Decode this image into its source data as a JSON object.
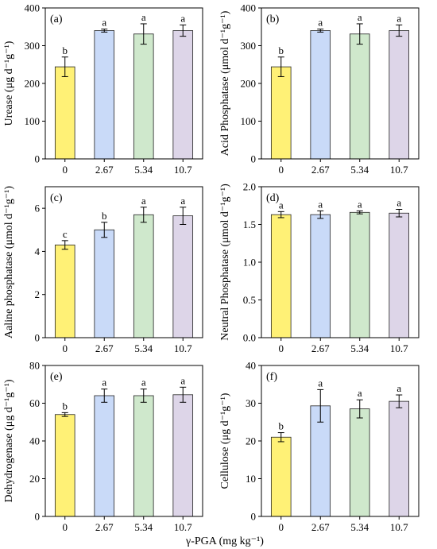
{
  "figure": {
    "xlabel": "γ-PGA (mg kg⁻¹)"
  },
  "colors": [
    "#fff176",
    "#c9daf8",
    "#cfe8cc",
    "#ddd5e8"
  ],
  "chart_data": [
    {
      "type": "bar",
      "panel_label": "(a)",
      "ylabel": "Urease (μg d⁻¹g⁻¹)",
      "categories": [
        "0",
        "2.67",
        "5.34",
        "10.7"
      ],
      "values": [
        244,
        340,
        331,
        340
      ],
      "errors": [
        26,
        4,
        27,
        15
      ],
      "letters": [
        "b",
        "a",
        "a",
        "a"
      ],
      "ylim": [
        0,
        400
      ],
      "yticks": [
        "0",
        "100",
        "200",
        "300",
        "400"
      ]
    },
    {
      "type": "bar",
      "panel_label": "(b)",
      "ylabel": "Acid Phosphatase (μmol d⁻¹g⁻¹)",
      "categories": [
        "0",
        "2.67",
        "5.34",
        "10.7"
      ],
      "values": [
        244,
        340,
        331,
        340
      ],
      "errors": [
        26,
        4,
        27,
        15
      ],
      "letters": [
        "b",
        "a",
        "a",
        "a"
      ],
      "ylim": [
        0,
        400
      ],
      "yticks": [
        "0",
        "100",
        "200",
        "300",
        "400"
      ]
    },
    {
      "type": "bar",
      "panel_label": "(c)",
      "ylabel": "Aaline phosphatase (μmol d⁻¹g⁻¹)",
      "categories": [
        "0",
        "2.67",
        "5.34",
        "10.7"
      ],
      "values": [
        4.3,
        5.0,
        5.7,
        5.65
      ],
      "errors": [
        0.2,
        0.35,
        0.35,
        0.4
      ],
      "letters": [
        "c",
        "b",
        "a",
        "a"
      ],
      "ylim": [
        0,
        7
      ],
      "yticks": [
        "0",
        "2",
        "4",
        "6"
      ]
    },
    {
      "type": "bar",
      "panel_label": "(d)",
      "ylabel": "Neutral Phosphatase (μmol d⁻¹g⁻¹)",
      "categories": [
        "0",
        "2.67",
        "5.34",
        "10.7"
      ],
      "values": [
        1.63,
        1.63,
        1.66,
        1.65
      ],
      "errors": [
        0.04,
        0.05,
        0.02,
        0.05
      ],
      "letters": [
        "a",
        "a",
        "a",
        "a"
      ],
      "ylim": [
        0,
        2.0
      ],
      "yticks": [
        "0.0",
        "0.5",
        "1.0",
        "1.5",
        "2.0"
      ]
    },
    {
      "type": "bar",
      "panel_label": "(e)",
      "ylabel": "Dehydrogenase (μg d⁻¹g⁻¹)",
      "categories": [
        "0",
        "2.67",
        "5.34",
        "10.7"
      ],
      "values": [
        54,
        64,
        64,
        64.5
      ],
      "errors": [
        1,
        3.5,
        3.5,
        4
      ],
      "letters": [
        "b",
        "a",
        "a",
        "a"
      ],
      "ylim": [
        0,
        80
      ],
      "yticks": [
        "0",
        "20",
        "40",
        "60",
        "80"
      ]
    },
    {
      "type": "bar",
      "panel_label": "(f)",
      "ylabel": "Cellulose (μg d⁻¹g⁻¹)",
      "categories": [
        "0",
        "2.67",
        "5.34",
        "10.7"
      ],
      "values": [
        21,
        29.3,
        28.5,
        30.5
      ],
      "errors": [
        1.2,
        4.3,
        2.4,
        1.7
      ],
      "letters": [
        "b",
        "a",
        "a",
        "a"
      ],
      "ylim": [
        0,
        40
      ],
      "yticks": [
        "0",
        "10",
        "20",
        "30",
        "40"
      ]
    }
  ]
}
